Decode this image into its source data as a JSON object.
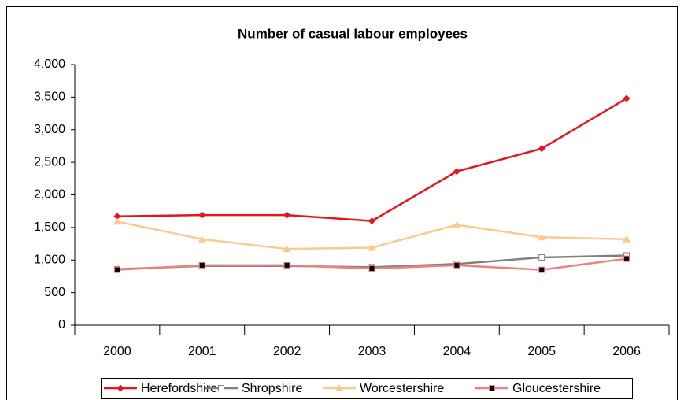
{
  "chart_data": {
    "type": "line",
    "title": "Number of casual labour employees",
    "categories": [
      "2000",
      "2001",
      "2002",
      "2003",
      "2004",
      "2005",
      "2006"
    ],
    "series": [
      {
        "name": "Herefordshire",
        "color": "#e8141c",
        "marker": "diamond",
        "values": [
          1670,
          1690,
          1690,
          1600,
          2360,
          2710,
          3480
        ]
      },
      {
        "name": "Shropshire",
        "color": "#808080",
        "marker": "square-open",
        "values": [
          860,
          910,
          910,
          890,
          940,
          1040,
          1070
        ]
      },
      {
        "name": "Worcestershire",
        "color": "#fcc98f",
        "marker": "triangle",
        "values": [
          1590,
          1320,
          1170,
          1190,
          1540,
          1350,
          1320
        ]
      },
      {
        "name": "Gloucestershire",
        "color": "#f08080",
        "marker": "square",
        "values": [
          850,
          920,
          920,
          870,
          920,
          850,
          1020
        ]
      }
    ],
    "ylim": [
      0,
      4000
    ],
    "yticks": [
      0,
      500,
      {
        "value": 1000,
        "label": "1,000"
      },
      {
        "value": 1500,
        "label": "1,500"
      },
      {
        "value": 2000,
        "label": "2,000"
      },
      {
        "value": 2500,
        "label": "2,500"
      },
      {
        "value": 3000,
        "label": "3,000"
      },
      {
        "value": 3500,
        "label": "3,500"
      },
      {
        "value": 4000,
        "label": "4,000"
      }
    ],
    "legend": "bottom"
  }
}
